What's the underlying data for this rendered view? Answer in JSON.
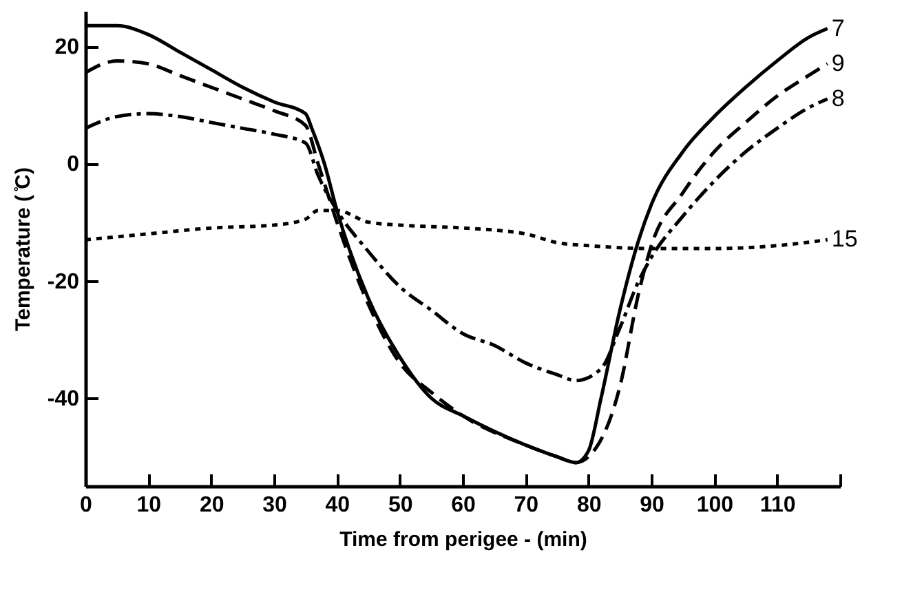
{
  "chart_data": {
    "type": "line",
    "xlabel": "Time from perigee - (min)",
    "ylabel": "Temperature ( ̊C)",
    "xlim": [
      0,
      120
    ],
    "ylim": [
      -55,
      26
    ],
    "xticks": [
      0,
      10,
      20,
      30,
      40,
      50,
      60,
      70,
      80,
      90,
      100,
      110,
      {
        "value": 120,
        "label": null
      }
    ],
    "yticks": [
      -40,
      -20,
      0,
      20
    ],
    "series": [
      {
        "name": "7",
        "color": "#000000",
        "line_style": "solid",
        "x": [
          0,
          5,
          10,
          15,
          20,
          25,
          30,
          35,
          36,
          38,
          40,
          45,
          50,
          55,
          60,
          70,
          75,
          78,
          80,
          82,
          85,
          88,
          90,
          95,
          100,
          105,
          110,
          115,
          118
        ],
        "values": [
          23.5,
          23.5,
          22,
          19,
          16,
          13,
          10.5,
          8.5,
          6,
          0,
          -8,
          -23,
          -33,
          -40,
          -43,
          -48,
          -50,
          -51,
          -49,
          -40,
          -25,
          -13,
          -7,
          2,
          8,
          13,
          17.5,
          21.5,
          23
        ]
      },
      {
        "name": "9",
        "color": "#000000",
        "line_style": "dashed",
        "x": [
          0,
          5,
          10,
          15,
          20,
          25,
          30,
          35,
          37,
          40,
          45,
          50,
          55,
          60,
          70,
          75,
          78,
          80,
          85,
          88,
          90,
          95,
          100,
          105,
          110,
          115,
          118
        ],
        "values": [
          15.5,
          17.5,
          17,
          15,
          13,
          11,
          9,
          6.5,
          0,
          -10,
          -24,
          -34,
          -39,
          -43,
          -48,
          -50,
          -51,
          -50,
          -38,
          -22,
          -14,
          -5,
          2,
          7,
          11.5,
          15,
          17
        ]
      },
      {
        "name": "8",
        "color": "#000000",
        "line_style": "dashdot",
        "x": [
          0,
          5,
          10,
          15,
          20,
          25,
          30,
          35,
          37,
          40,
          45,
          50,
          55,
          60,
          65,
          70,
          75,
          78,
          82,
          85,
          88,
          90,
          95,
          100,
          105,
          110,
          115,
          118
        ],
        "values": [
          6,
          8,
          8.5,
          8,
          7,
          6,
          5,
          3.5,
          -2,
          -8,
          -15,
          -21,
          -25,
          -29,
          -31,
          -34,
          -36,
          -37,
          -35,
          -28,
          -20,
          -16,
          -9,
          -3,
          2,
          6,
          9.5,
          11
        ]
      },
      {
        "name": "15",
        "color": "#000000",
        "line_style": "dotted",
        "x": [
          0,
          10,
          20,
          30,
          35,
          37,
          40,
          45,
          50,
          60,
          70,
          75,
          80,
          90,
          100,
          110,
          118
        ],
        "values": [
          -13,
          -12,
          -11,
          -10.5,
          -9.5,
          -8,
          -8,
          -10,
          -10.5,
          -11,
          -12,
          -13.5,
          -14,
          -14.5,
          -14.5,
          -14,
          -13
        ]
      }
    ]
  }
}
